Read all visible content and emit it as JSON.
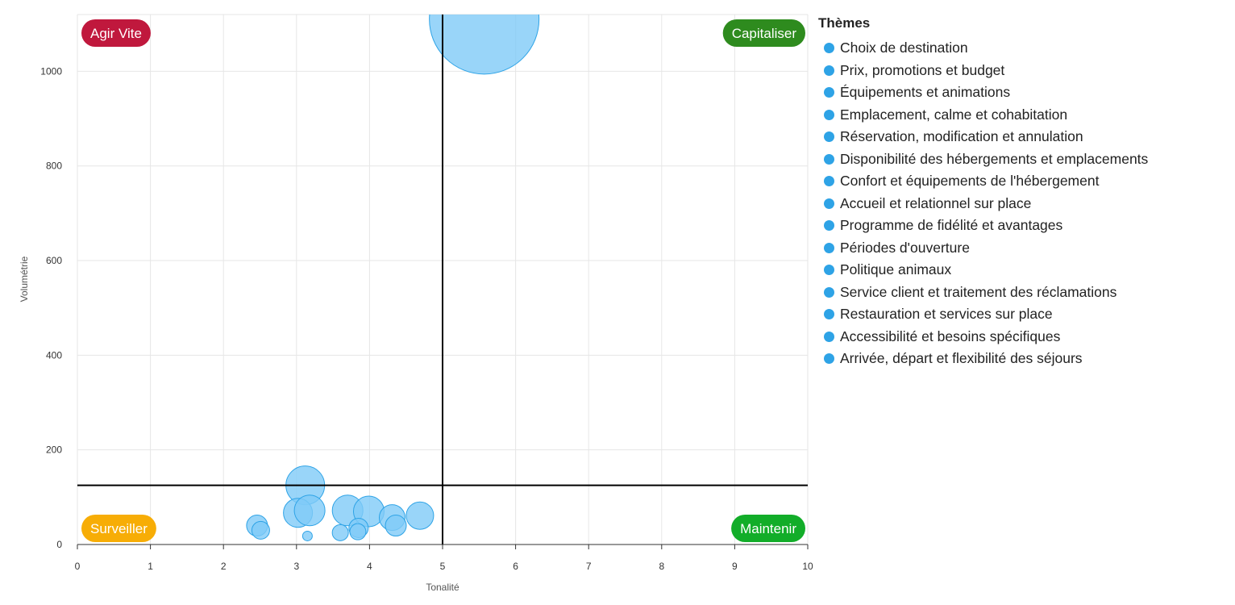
{
  "chart_data": {
    "type": "scatter",
    "subtype": "bubble",
    "xlabel": "Tonalité",
    "ylabel": "Volumétrie",
    "xlim": [
      0,
      10
    ],
    "ylim": [
      0,
      1120
    ],
    "xticks": [
      0,
      1,
      2,
      3,
      4,
      5,
      6,
      7,
      8,
      9,
      10
    ],
    "yticks": [
      0,
      200,
      400,
      600,
      800,
      1000
    ],
    "grid": true,
    "threshold_x": 5,
    "threshold_y": 125,
    "quadrants": [
      {
        "label": "Agir Vite",
        "position": "top-left",
        "color": "#c0183d"
      },
      {
        "label": "Capitaliser",
        "position": "top-right",
        "color": "#2e8b1e"
      },
      {
        "label": "Surveiller",
        "position": "bottom-left",
        "color": "#f7ad06"
      },
      {
        "label": "Maintenir",
        "position": "bottom-right",
        "color": "#12ad29"
      }
    ],
    "bubble_color": "#7fcaf7",
    "bubble_stroke": "#2ea3e6",
    "points": [
      {
        "x": 5.57,
        "y": 1110,
        "size": 68
      },
      {
        "x": 3.12,
        "y": 125,
        "size": 24
      },
      {
        "x": 3.02,
        "y": 67,
        "size": 18
      },
      {
        "x": 3.18,
        "y": 72,
        "size": 19
      },
      {
        "x": 3.7,
        "y": 72,
        "size": 19
      },
      {
        "x": 3.99,
        "y": 70,
        "size": 19
      },
      {
        "x": 4.69,
        "y": 61,
        "size": 17
      },
      {
        "x": 4.31,
        "y": 57,
        "size": 16
      },
      {
        "x": 4.36,
        "y": 40,
        "size": 13
      },
      {
        "x": 2.46,
        "y": 40,
        "size": 13
      },
      {
        "x": 2.51,
        "y": 30,
        "size": 11
      },
      {
        "x": 3.85,
        "y": 35,
        "size": 12
      },
      {
        "x": 3.84,
        "y": 27,
        "size": 10
      },
      {
        "x": 3.6,
        "y": 25,
        "size": 10
      },
      {
        "x": 3.15,
        "y": 18,
        "size": 6
      }
    ]
  },
  "legend": {
    "title": "Thèmes",
    "color": "#2ea3e6",
    "items": [
      "Choix de destination",
      "Prix, promotions et budget",
      "Équipements et animations",
      "Emplacement, calme et cohabitation",
      "Réservation, modification et annulation",
      "Disponibilité des hébergements et emplacements",
      "Confort et équipements de l'hébergement",
      "Accueil et relationnel sur place",
      "Programme de fidélité et avantages",
      "Périodes d'ouverture",
      "Politique animaux",
      "Service client et traitement des réclamations",
      "Restauration et services sur place",
      "Accessibilité et besoins spécifiques",
      "Arrivée, départ et flexibilité des séjours"
    ]
  }
}
